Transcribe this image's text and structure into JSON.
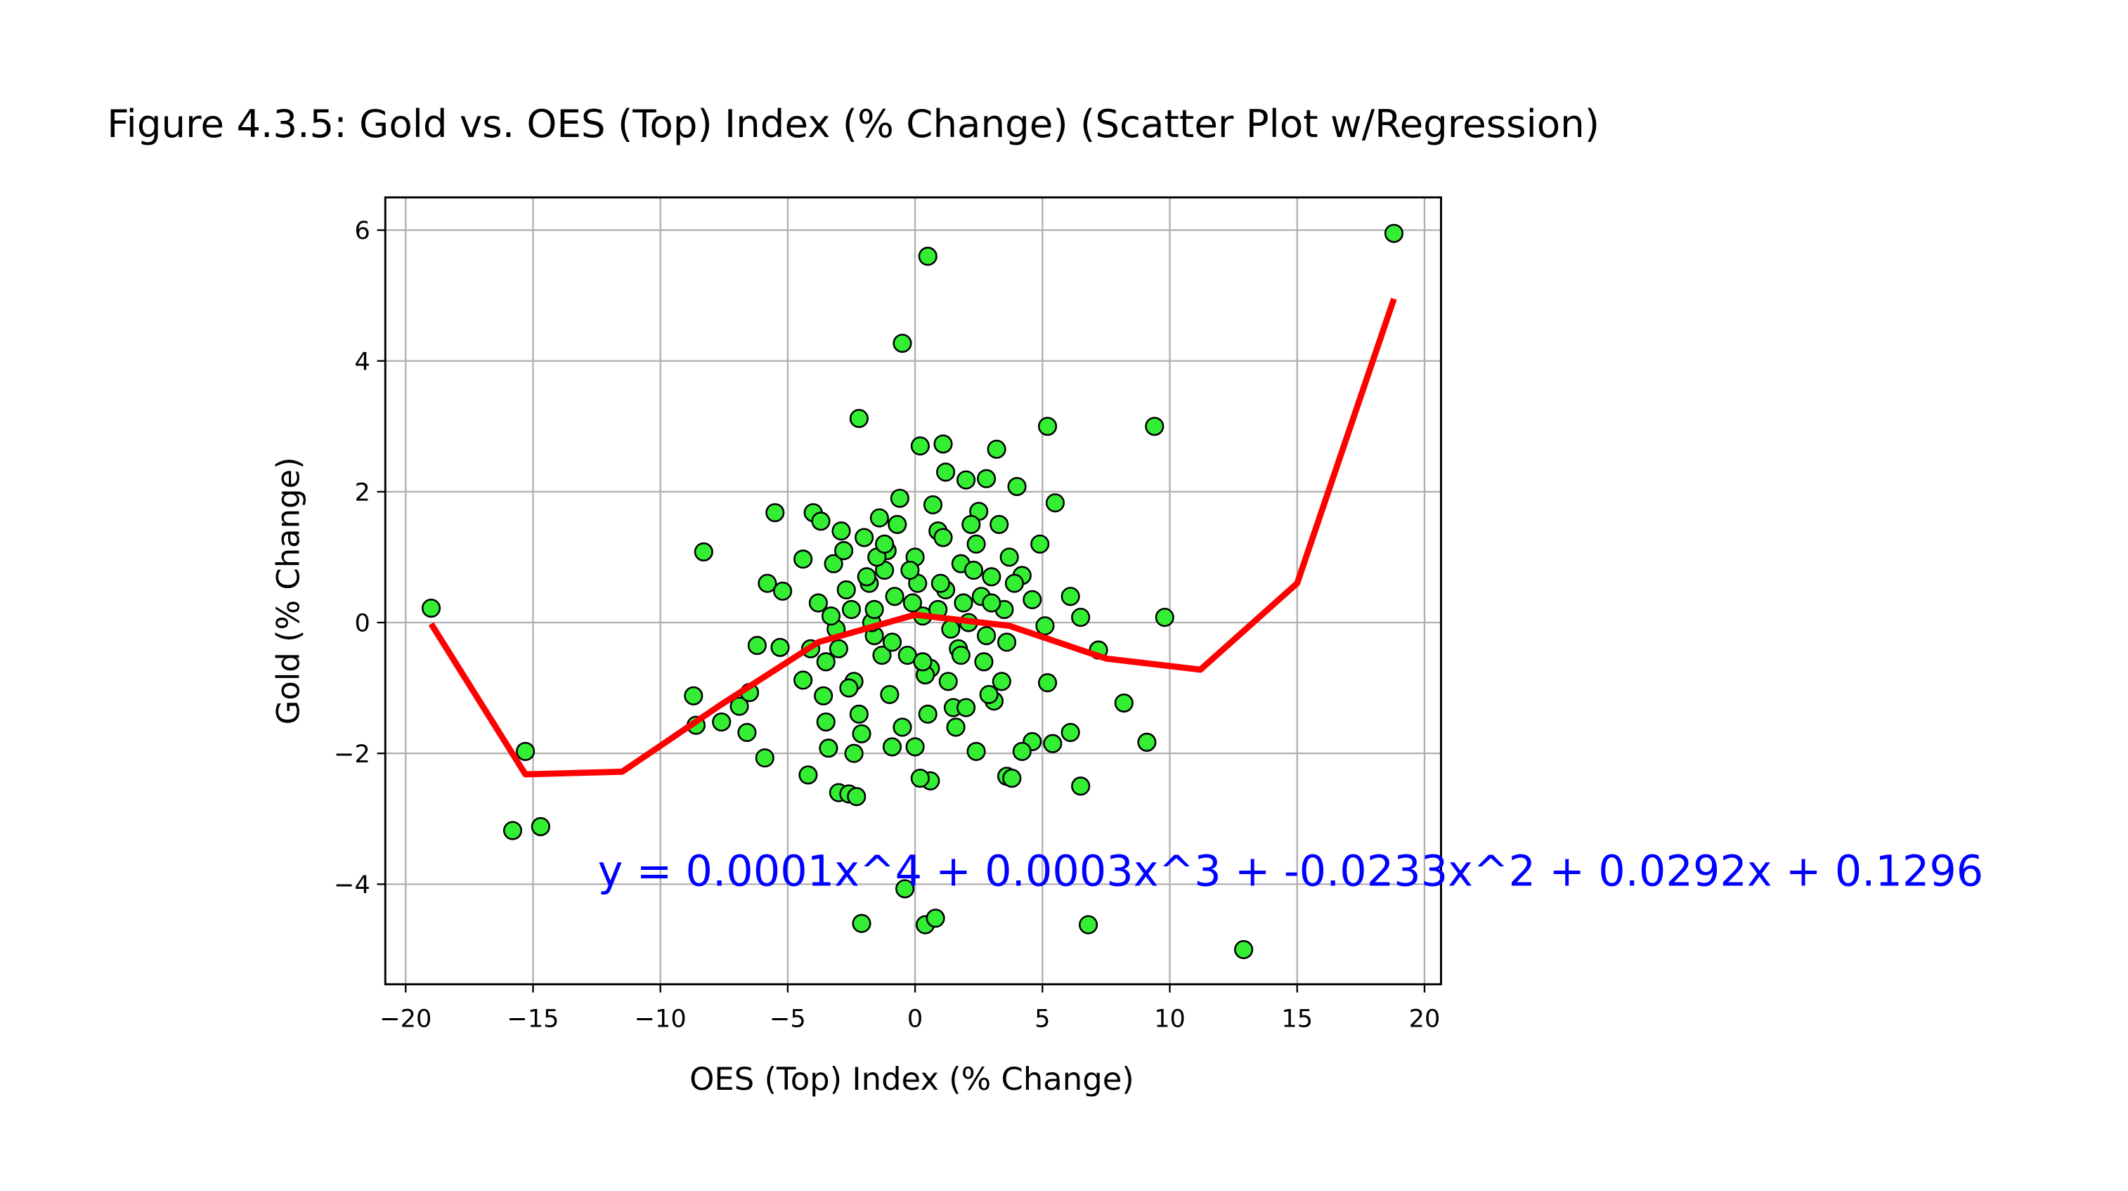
{
  "chart_data": {
    "type": "scatter",
    "title": "Figure 4.3.5: Gold vs. OES (Top) Index (% Change) (Scatter Plot w/Regression)",
    "xlabel": "OES (Top) Index (% Change)",
    "ylabel": "Gold (% Change)",
    "annotation": "y = 0.0001x^4 + 0.0003x^3 + -0.0233x^2 + 0.0292x + 0.1296",
    "xlim": [
      -20.8,
      20.65
    ],
    "ylim": [
      -5.53,
      6.5
    ],
    "xticks": [
      {
        "value": -20,
        "label": "−20"
      },
      {
        "value": -15,
        "label": "−15"
      },
      {
        "value": -10,
        "label": "−10"
      },
      {
        "value": -5,
        "label": "−5"
      },
      0,
      5,
      10,
      15,
      20
    ],
    "yticks": [
      {
        "value": -4,
        "label": "−4"
      },
      {
        "value": -2,
        "label": "−2"
      },
      0,
      2,
      4,
      6
    ],
    "grid": true,
    "color": "#33ee33",
    "edgecolor": "#000000",
    "x": [
      -19,
      -15.3,
      -15.8,
      -14.7,
      -8.3,
      -8.7,
      -8.6,
      -7.6,
      -6.9,
      -6.6,
      -6.5,
      -6.2,
      -5.9,
      -5.8,
      -5.5,
      -5.3,
      -5.2,
      -4.4,
      -4.4,
      -4.2,
      -4,
      -3.7,
      -3.6,
      -3.5,
      -3.4,
      -3,
      -2.6,
      -2.3,
      -2.2,
      -2.1,
      -0.5,
      -0.4,
      0.5,
      0.4,
      0.8,
      0.6,
      0.2,
      0.2,
      1.1,
      1.2,
      2,
      2.8,
      3.2,
      4,
      5.2,
      5.5,
      4.9,
      4.2,
      4.6,
      5.1,
      5.2,
      5.4,
      4.6,
      4.2,
      3.6,
      3.8,
      2.4,
      6.1,
      6.1,
      6.5,
      6.5,
      6.8,
      7.2,
      8.2,
      9.1,
      9.4,
      9.8,
      12.9,
      18.8,
      -3.8,
      -3.2,
      -3.0,
      -2.8,
      -2.5,
      -2.4,
      -2.0,
      -1.8,
      -1.6,
      -1.4,
      -1.2,
      -1.0,
      -0.8,
      -0.6,
      -0.3,
      0,
      0.3,
      0.6,
      0.9,
      1.2,
      1.5,
      1.8,
      2.1,
      2.4,
      2.7,
      3.0,
      3.3,
      3.6,
      3.9,
      -3.5,
      -2.9,
      -2.2,
      -1.7,
      -1.1,
      -0.5,
      0.1,
      0.7,
      1.3,
      1.9,
      2.5,
      3.1,
      3.7,
      -3.1,
      -2.6,
      -1.9,
      -1.3,
      -0.7,
      -0.1,
      0.5,
      1.1,
      1.7,
      2.3,
      2.9,
      3.5,
      -2.7,
      -2.1,
      -1.5,
      -0.9,
      -0.2,
      0.4,
      1.0,
      1.6,
      2.2,
      2.8,
      3.4,
      -4.1,
      -1.6,
      -0.9,
      0.3,
      1.4,
      2.6,
      -2.4,
      -1.2,
      0.9,
      1.8,
      3.0,
      -3.3,
      0.0,
      2.0
    ],
    "values": [
      0.22,
      -1.97,
      -3.18,
      -3.12,
      1.08,
      -1.12,
      -1.57,
      -1.52,
      -1.28,
      -1.68,
      -1.07,
      -0.35,
      -2.07,
      0.6,
      1.68,
      -0.38,
      0.48,
      0.97,
      -0.88,
      -2.33,
      1.68,
      1.55,
      -1.12,
      -1.52,
      -1.92,
      -2.6,
      -2.62,
      -2.66,
      3.12,
      -4.6,
      4.27,
      -4.07,
      5.6,
      -4.62,
      -4.52,
      -2.42,
      -2.38,
      2.7,
      2.73,
      2.3,
      2.18,
      2.2,
      2.65,
      2.08,
      3.0,
      1.83,
      1.2,
      0.72,
      0.35,
      -0.05,
      -0.92,
      -1.85,
      -1.82,
      -1.97,
      -2.35,
      -2.38,
      -1.97,
      -1.68,
      0.4,
      0.08,
      -2.5,
      -4.62,
      -0.42,
      -1.23,
      -1.83,
      3.0,
      0.08,
      -5.0,
      5.95,
      0.3,
      0.9,
      -0.4,
      1.1,
      0.2,
      -0.9,
      1.3,
      0.6,
      -0.2,
      1.6,
      0.8,
      -1.1,
      0.4,
      1.9,
      -0.5,
      1.0,
      0.1,
      -0.7,
      1.4,
      0.5,
      -1.3,
      0.9,
      0.0,
      1.2,
      -0.6,
      0.7,
      1.5,
      -0.3,
      0.6,
      -0.6,
      1.4,
      -1.4,
      0.0,
      1.1,
      -1.6,
      0.6,
      1.8,
      -0.9,
      0.3,
      1.7,
      -1.2,
      1.0,
      -0.1,
      -1.0,
      0.7,
      -0.5,
      1.5,
      0.3,
      -1.4,
      1.3,
      -0.4,
      0.8,
      -1.1,
      0.2,
      0.5,
      -1.7,
      1.0,
      -1.9,
      0.8,
      -0.8,
      0.6,
      -1.6,
      1.5,
      -0.2,
      -0.9,
      -0.4,
      0.2,
      -0.3,
      -0.6,
      -0.1,
      0.4,
      -2.0,
      1.2,
      0.2,
      -0.5,
      0.3,
      0.1,
      -1.9,
      -1.3
    ],
    "regression": {
      "color": "#ff0000",
      "x": [
        -19,
        -15.3,
        -11.5,
        -7.6,
        -3.8,
        0,
        3.7,
        7.5,
        11.2,
        15,
        18.8
      ],
      "values": [
        -0.02,
        -2.32,
        -2.28,
        -1.25,
        -0.3,
        0.12,
        -0.05,
        -0.55,
        -0.72,
        0.6,
        4.95
      ]
    }
  }
}
